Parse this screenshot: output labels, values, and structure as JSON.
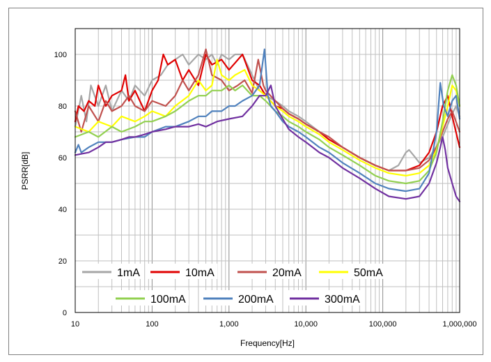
{
  "chart_data": {
    "type": "line",
    "title": "",
    "xlabel": "Frequency[Hz]",
    "ylabel": "PSRR[dB]",
    "xscale": "log",
    "xlim": [
      10,
      1000000
    ],
    "ylim": [
      0,
      110
    ],
    "xticks": [
      10,
      100,
      1000,
      10000,
      100000,
      1000000
    ],
    "xtick_labels": [
      "10",
      "100",
      "1,000",
      "10,000",
      "100,000",
      "1,000,000"
    ],
    "yticks": [
      0,
      20,
      40,
      60,
      80,
      100
    ],
    "ytick_labels": [
      "0",
      "20",
      "40",
      "60",
      "80",
      "100"
    ],
    "grid": true,
    "legend_position": "lower-center",
    "series": [
      {
        "name": "1mA",
        "color": "#a6a6a6",
        "points": [
          [
            10,
            72
          ],
          [
            12,
            84
          ],
          [
            14,
            74
          ],
          [
            16,
            88
          ],
          [
            20,
            80
          ],
          [
            25,
            88
          ],
          [
            30,
            78
          ],
          [
            40,
            86
          ],
          [
            50,
            82
          ],
          [
            60,
            88
          ],
          [
            80,
            84
          ],
          [
            100,
            90
          ],
          [
            130,
            92
          ],
          [
            160,
            96
          ],
          [
            200,
            98
          ],
          [
            250,
            100
          ],
          [
            300,
            96
          ],
          [
            400,
            100
          ],
          [
            500,
            98
          ],
          [
            600,
            100
          ],
          [
            700,
            96
          ],
          [
            800,
            100
          ],
          [
            1000,
            98
          ],
          [
            1200,
            100
          ],
          [
            1500,
            100
          ],
          [
            2000,
            92
          ],
          [
            2500,
            86
          ],
          [
            3000,
            84
          ],
          [
            4000,
            82
          ],
          [
            5000,
            80
          ],
          [
            6000,
            78
          ],
          [
            8000,
            76
          ],
          [
            10000,
            74
          ],
          [
            15000,
            70
          ],
          [
            20000,
            67
          ],
          [
            30000,
            64
          ],
          [
            50000,
            60
          ],
          [
            80000,
            57
          ],
          [
            120000,
            55
          ],
          [
            160000,
            57
          ],
          [
            200000,
            62
          ],
          [
            220000,
            63
          ],
          [
            250000,
            61
          ],
          [
            300000,
            58
          ],
          [
            400000,
            60
          ],
          [
            600000,
            68
          ],
          [
            800000,
            77
          ],
          [
            900000,
            80
          ],
          [
            1000000,
            76
          ]
        ]
      },
      {
        "name": "10mA",
        "color": "#e00000",
        "points": [
          [
            10,
            74
          ],
          [
            11,
            80
          ],
          [
            13,
            78
          ],
          [
            15,
            82
          ],
          [
            18,
            80
          ],
          [
            20,
            88
          ],
          [
            25,
            80
          ],
          [
            30,
            84
          ],
          [
            40,
            86
          ],
          [
            45,
            92
          ],
          [
            50,
            82
          ],
          [
            60,
            86
          ],
          [
            80,
            78
          ],
          [
            100,
            86
          ],
          [
            120,
            90
          ],
          [
            140,
            100
          ],
          [
            160,
            96
          ],
          [
            200,
            98
          ],
          [
            250,
            90
          ],
          [
            300,
            94
          ],
          [
            400,
            88
          ],
          [
            500,
            100
          ],
          [
            600,
            96
          ],
          [
            800,
            98
          ],
          [
            1000,
            94
          ],
          [
            1500,
            100
          ],
          [
            2000,
            90
          ],
          [
            2500,
            88
          ],
          [
            3000,
            84
          ],
          [
            4000,
            80
          ],
          [
            5000,
            79
          ],
          [
            6000,
            77
          ],
          [
            8000,
            75
          ],
          [
            10000,
            73
          ],
          [
            15000,
            70
          ],
          [
            20000,
            67
          ],
          [
            30000,
            64
          ],
          [
            50000,
            60
          ],
          [
            80000,
            57
          ],
          [
            120000,
            55
          ],
          [
            200000,
            55
          ],
          [
            300000,
            57
          ],
          [
            400000,
            62
          ],
          [
            500000,
            70
          ],
          [
            600000,
            80
          ],
          [
            700000,
            84
          ],
          [
            800000,
            76
          ],
          [
            1000000,
            64
          ]
        ]
      },
      {
        "name": "20mA",
        "color": "#c0504d",
        "points": [
          [
            10,
            78
          ],
          [
            12,
            70
          ],
          [
            15,
            80
          ],
          [
            20,
            74
          ],
          [
            25,
            82
          ],
          [
            30,
            78
          ],
          [
            40,
            80
          ],
          [
            50,
            84
          ],
          [
            60,
            80
          ],
          [
            80,
            78
          ],
          [
            100,
            82
          ],
          [
            150,
            80
          ],
          [
            200,
            84
          ],
          [
            250,
            90
          ],
          [
            300,
            86
          ],
          [
            400,
            92
          ],
          [
            500,
            102
          ],
          [
            600,
            92
          ],
          [
            800,
            90
          ],
          [
            1000,
            86
          ],
          [
            1300,
            88
          ],
          [
            1600,
            90
          ],
          [
            2000,
            85
          ],
          [
            2400,
            98
          ],
          [
            2800,
            88
          ],
          [
            3000,
            86
          ],
          [
            4000,
            82
          ],
          [
            5000,
            79
          ],
          [
            6000,
            77
          ],
          [
            8000,
            75
          ],
          [
            10000,
            73
          ],
          [
            15000,
            70
          ],
          [
            20000,
            68
          ],
          [
            30000,
            64
          ],
          [
            50000,
            60
          ],
          [
            80000,
            57
          ],
          [
            120000,
            55
          ],
          [
            200000,
            55
          ],
          [
            300000,
            56
          ],
          [
            400000,
            59
          ],
          [
            500000,
            64
          ],
          [
            600000,
            70
          ],
          [
            700000,
            75
          ],
          [
            800000,
            78
          ],
          [
            1000000,
            70
          ]
        ]
      },
      {
        "name": "50mA",
        "color": "#ffff00",
        "points": [
          [
            10,
            72
          ],
          [
            15,
            70
          ],
          [
            20,
            74
          ],
          [
            30,
            72
          ],
          [
            40,
            76
          ],
          [
            60,
            74
          ],
          [
            80,
            76
          ],
          [
            100,
            78
          ],
          [
            150,
            76
          ],
          [
            200,
            80
          ],
          [
            300,
            84
          ],
          [
            400,
            90
          ],
          [
            500,
            86
          ],
          [
            600,
            88
          ],
          [
            700,
            98
          ],
          [
            800,
            92
          ],
          [
            1000,
            90
          ],
          [
            1200,
            92
          ],
          [
            1600,
            94
          ],
          [
            2000,
            88
          ],
          [
            2500,
            86
          ],
          [
            3000,
            84
          ],
          [
            4000,
            80
          ],
          [
            5000,
            78
          ],
          [
            6000,
            76
          ],
          [
            8000,
            74
          ],
          [
            10000,
            72
          ],
          [
            15000,
            69
          ],
          [
            20000,
            66
          ],
          [
            30000,
            63
          ],
          [
            50000,
            59
          ],
          [
            80000,
            56
          ],
          [
            120000,
            54
          ],
          [
            200000,
            53
          ],
          [
            300000,
            54
          ],
          [
            400000,
            57
          ],
          [
            500000,
            63
          ],
          [
            600000,
            72
          ],
          [
            700000,
            80
          ],
          [
            800000,
            88
          ],
          [
            900000,
            86
          ],
          [
            1000000,
            80
          ]
        ]
      },
      {
        "name": "100mA",
        "color": "#92d050",
        "points": [
          [
            10,
            68
          ],
          [
            15,
            70
          ],
          [
            20,
            68
          ],
          [
            30,
            72
          ],
          [
            40,
            70
          ],
          [
            60,
            72
          ],
          [
            80,
            74
          ],
          [
            100,
            74
          ],
          [
            150,
            76
          ],
          [
            200,
            78
          ],
          [
            300,
            82
          ],
          [
            400,
            84
          ],
          [
            500,
            84
          ],
          [
            600,
            86
          ],
          [
            800,
            86
          ],
          [
            1000,
            88
          ],
          [
            1200,
            86
          ],
          [
            1500,
            88
          ],
          [
            2000,
            84
          ],
          [
            2500,
            84
          ],
          [
            3000,
            82
          ],
          [
            4000,
            78
          ],
          [
            5000,
            76
          ],
          [
            6000,
            74
          ],
          [
            8000,
            72
          ],
          [
            10000,
            70
          ],
          [
            15000,
            67
          ],
          [
            20000,
            64
          ],
          [
            30000,
            61
          ],
          [
            50000,
            57
          ],
          [
            80000,
            53
          ],
          [
            120000,
            51
          ],
          [
            200000,
            50
          ],
          [
            300000,
            51
          ],
          [
            400000,
            55
          ],
          [
            500000,
            62
          ],
          [
            600000,
            74
          ],
          [
            700000,
            86
          ],
          [
            800000,
            92
          ],
          [
            900000,
            88
          ],
          [
            1000000,
            80
          ]
        ]
      },
      {
        "name": "200mA",
        "color": "#4f81bd",
        "points": [
          [
            10,
            62
          ],
          [
            11,
            65
          ],
          [
            12,
            62
          ],
          [
            15,
            64
          ],
          [
            20,
            66
          ],
          [
            30,
            66
          ],
          [
            40,
            67
          ],
          [
            60,
            68
          ],
          [
            80,
            68
          ],
          [
            100,
            70
          ],
          [
            150,
            72
          ],
          [
            200,
            72
          ],
          [
            300,
            74
          ],
          [
            400,
            76
          ],
          [
            500,
            76
          ],
          [
            600,
            78
          ],
          [
            800,
            78
          ],
          [
            1000,
            80
          ],
          [
            1200,
            80
          ],
          [
            1500,
            82
          ],
          [
            2000,
            84
          ],
          [
            2500,
            88
          ],
          [
            2900,
            102
          ],
          [
            3200,
            84
          ],
          [
            3500,
            80
          ],
          [
            4000,
            78
          ],
          [
            5000,
            74
          ],
          [
            6000,
            72
          ],
          [
            8000,
            70
          ],
          [
            10000,
            68
          ],
          [
            15000,
            64
          ],
          [
            20000,
            62
          ],
          [
            30000,
            58
          ],
          [
            50000,
            54
          ],
          [
            80000,
            50
          ],
          [
            120000,
            48
          ],
          [
            200000,
            47
          ],
          [
            300000,
            48
          ],
          [
            400000,
            54
          ],
          [
            500000,
            70
          ],
          [
            560000,
            89
          ],
          [
            620000,
            80
          ],
          [
            700000,
            76
          ],
          [
            800000,
            82
          ],
          [
            900000,
            84
          ],
          [
            1000000,
            75
          ]
        ]
      },
      {
        "name": "300mA",
        "color": "#7030a0",
        "points": [
          [
            10,
            61
          ],
          [
            15,
            62
          ],
          [
            20,
            64
          ],
          [
            25,
            66
          ],
          [
            30,
            66
          ],
          [
            40,
            67
          ],
          [
            50,
            68
          ],
          [
            60,
            68
          ],
          [
            80,
            69
          ],
          [
            100,
            70
          ],
          [
            150,
            71
          ],
          [
            200,
            72
          ],
          [
            300,
            72
          ],
          [
            400,
            73
          ],
          [
            500,
            72
          ],
          [
            700,
            74
          ],
          [
            1000,
            75
          ],
          [
            1500,
            76
          ],
          [
            2000,
            80
          ],
          [
            2500,
            84
          ],
          [
            3000,
            84
          ],
          [
            3500,
            88
          ],
          [
            4000,
            80
          ],
          [
            5000,
            75
          ],
          [
            6000,
            71
          ],
          [
            8000,
            68
          ],
          [
            10000,
            66
          ],
          [
            15000,
            62
          ],
          [
            20000,
            60
          ],
          [
            30000,
            56
          ],
          [
            50000,
            52
          ],
          [
            80000,
            48
          ],
          [
            120000,
            45
          ],
          [
            200000,
            44
          ],
          [
            300000,
            45
          ],
          [
            400000,
            50
          ],
          [
            500000,
            58
          ],
          [
            560000,
            64
          ],
          [
            600000,
            68
          ],
          [
            650000,
            63
          ],
          [
            700000,
            56
          ],
          [
            800000,
            50
          ],
          [
            900000,
            45
          ],
          [
            1000000,
            43
          ]
        ]
      }
    ]
  }
}
